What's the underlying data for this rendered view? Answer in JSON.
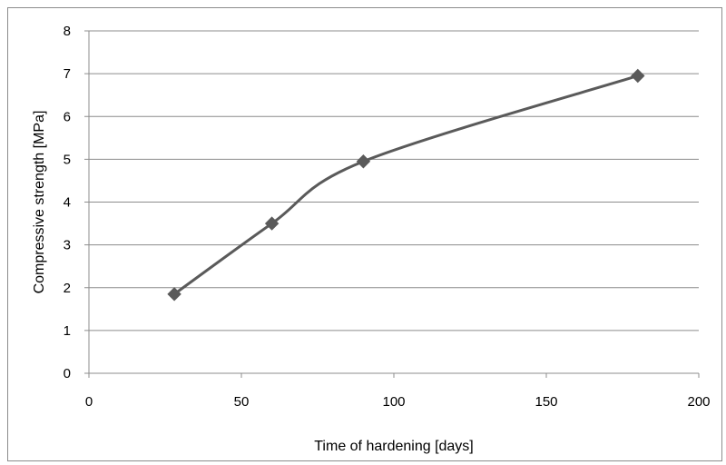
{
  "chart_data": {
    "type": "line",
    "title": "",
    "xlabel": "Time of hardening [days]",
    "ylabel": "Compressive strength [MPa]",
    "xlim": [
      0,
      200
    ],
    "ylim": [
      0,
      8
    ],
    "xticks": [
      0,
      50,
      100,
      150,
      200
    ],
    "yticks": [
      0,
      1,
      2,
      3,
      4,
      5,
      6,
      7,
      8
    ],
    "grid": "horizontal",
    "legend": "none",
    "series": [
      {
        "color": "#5a5a5a",
        "marker": "diamond",
        "x": [
          28,
          60,
          90,
          180
        ],
        "y": [
          1.85,
          3.5,
          4.95,
          6.95
        ]
      }
    ]
  }
}
